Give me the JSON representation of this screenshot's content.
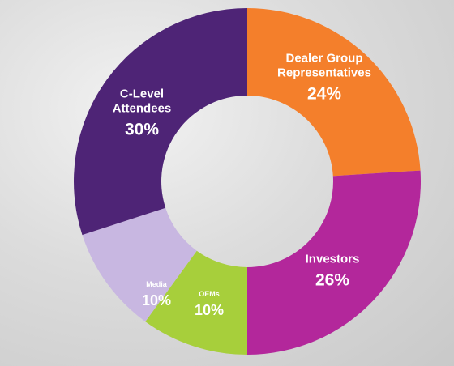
{
  "chart_data": {
    "type": "donut",
    "categories": [
      "Dealer Group Representatives",
      "Investors",
      "OEMs",
      "Media",
      "C-Level Attendees"
    ],
    "values": [
      24,
      26,
      10,
      10,
      30
    ],
    "value_labels": [
      "24%",
      "26%",
      "10%",
      "10%",
      "30%"
    ],
    "colors": [
      "#f47f2b",
      "#b3279b",
      "#a7cf3b",
      "#c8b7e1",
      "#4e2476"
    ]
  }
}
